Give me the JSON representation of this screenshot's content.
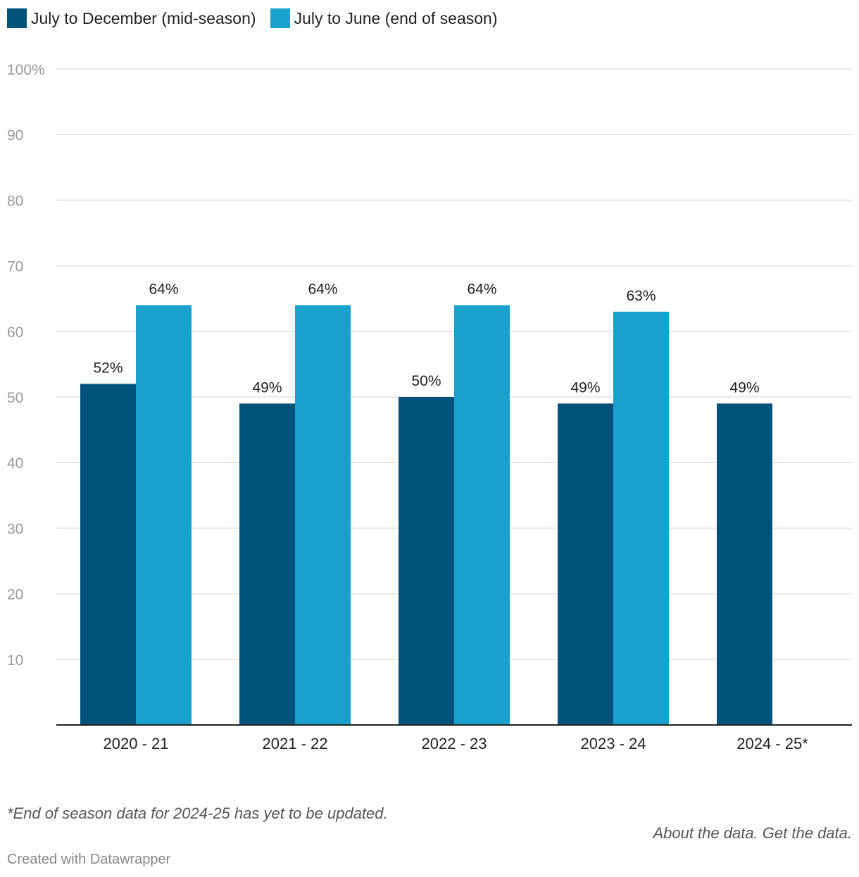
{
  "legend": [
    {
      "label": "July to December (mid-season)",
      "color": "#01527b"
    },
    {
      "label": "July to June (end of season)",
      "color": "#18a1cd"
    }
  ],
  "chart_data": {
    "type": "bar",
    "categories": [
      "2020 - 21",
      "2021 - 22",
      "2022 - 23",
      "2023 - 24",
      "2024 - 25*"
    ],
    "series": [
      {
        "name": "July to December (mid-season)",
        "color": "#01527b",
        "values": [
          52,
          49,
          50,
          49,
          49
        ]
      },
      {
        "name": "July to June (end of season)",
        "color": "#18a1cd",
        "values": [
          64,
          64,
          64,
          63,
          null
        ]
      }
    ],
    "ylim": [
      0,
      100
    ],
    "yticks": [
      10,
      20,
      30,
      40,
      50,
      60,
      70,
      80,
      90,
      100
    ],
    "ytick_labels": [
      "10",
      "20",
      "30",
      "40",
      "50",
      "60",
      "70",
      "80",
      "90",
      "100%"
    ],
    "value_suffix": "%",
    "xlabel": "",
    "ylabel": "",
    "grid": true,
    "legend_position": "top-left"
  },
  "footer": {
    "note": "*End of season data for 2024-25 has yet to be updated.",
    "about_link": "About the data.",
    "get_link": "Get the data.",
    "credit": "Created with Datawrapper"
  }
}
